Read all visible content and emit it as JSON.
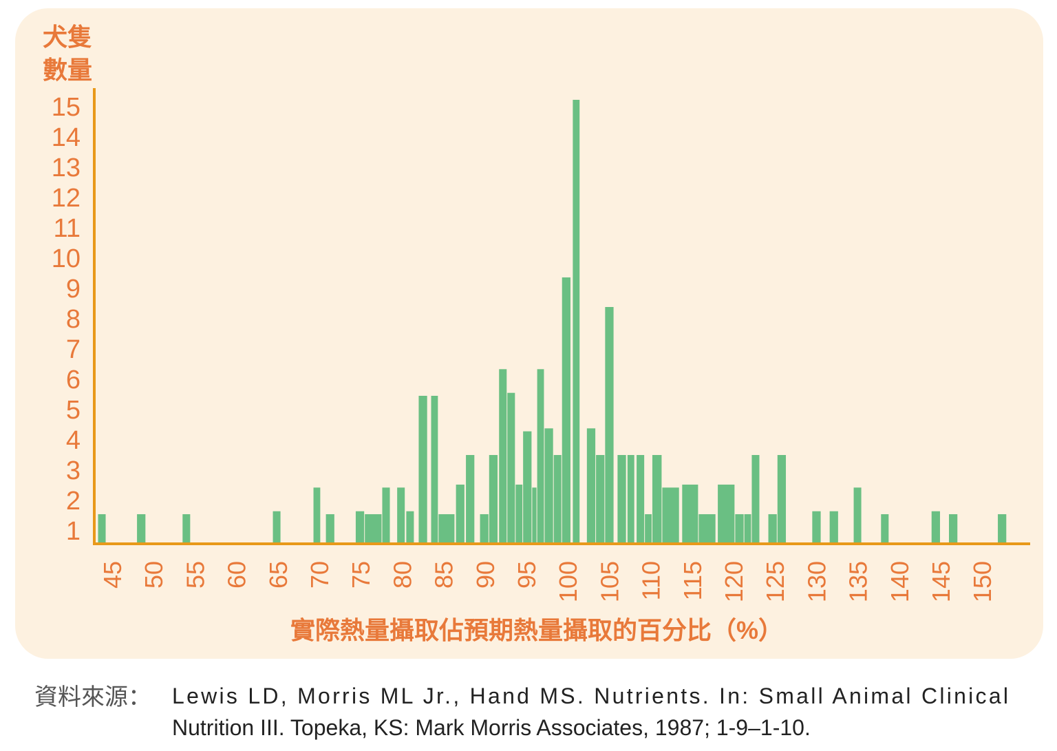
{
  "chart_data": {
    "type": "bar",
    "title": "",
    "ylabel_lines": [
      "犬隻",
      "數量"
    ],
    "xlabel": "實際熱量攝取佔預期熱量攝取的百分比（%）",
    "x_ticks": [
      "45",
      "50",
      "55",
      "60",
      "65",
      "70",
      "75",
      "80",
      "85",
      "90",
      "95",
      "100",
      "105",
      "110",
      "115",
      "120",
      "125",
      "130",
      "135",
      "140",
      "145",
      "150"
    ],
    "y_ticks": [
      "1",
      "2",
      "3",
      "4",
      "5",
      "6",
      "7",
      "8",
      "9",
      "10",
      "11",
      "12",
      "13",
      "14",
      "15"
    ],
    "xlim": [
      44,
      155
    ],
    "ylim": [
      0,
      15
    ],
    "grid": false,
    "bars": [
      {
        "x0": 44.0,
        "x1": 45.0,
        "count": 1
      },
      {
        "x0": 48.7,
        "x1": 49.8,
        "count": 1
      },
      {
        "x0": 54.2,
        "x1": 55.2,
        "count": 1
      },
      {
        "x0": 65.1,
        "x1": 66.1,
        "count": 1.1
      },
      {
        "x0": 70.0,
        "x1": 70.9,
        "count": 1.9
      },
      {
        "x0": 71.5,
        "x1": 72.6,
        "count": 1
      },
      {
        "x0": 75.1,
        "x1": 76.2,
        "count": 1.1
      },
      {
        "x0": 76.2,
        "x1": 78.3,
        "count": 1
      },
      {
        "x0": 78.3,
        "x1": 79.3,
        "count": 1.9
      },
      {
        "x0": 80.1,
        "x1": 81.1,
        "count": 1.9
      },
      {
        "x0": 81.2,
        "x1": 82.2,
        "count": 1.1
      },
      {
        "x0": 82.7,
        "x1": 83.8,
        "count": 5
      },
      {
        "x0": 84.2,
        "x1": 85.1,
        "count": 5
      },
      {
        "x0": 85.1,
        "x1": 87.1,
        "count": 1
      },
      {
        "x0": 87.2,
        "x1": 88.3,
        "count": 2
      },
      {
        "x0": 88.4,
        "x1": 89.5,
        "count": 3
      },
      {
        "x0": 90.1,
        "x1": 91.2,
        "count": 1
      },
      {
        "x0": 91.2,
        "x1": 92.3,
        "count": 3
      },
      {
        "x0": 92.4,
        "x1": 93.4,
        "count": 5.9
      },
      {
        "x0": 93.4,
        "x1": 94.4,
        "count": 5.1
      },
      {
        "x0": 94.4,
        "x1": 95.3,
        "count": 2
      },
      {
        "x0": 95.3,
        "x1": 96.4,
        "count": 3.8
      },
      {
        "x0": 96.4,
        "x1": 97.0,
        "count": 1.9
      },
      {
        "x0": 97.0,
        "x1": 97.9,
        "count": 5.9
      },
      {
        "x0": 97.9,
        "x1": 99.0,
        "count": 3.9
      },
      {
        "x0": 99.0,
        "x1": 100.0,
        "count": 3
      },
      {
        "x0": 100.0,
        "x1": 101.1,
        "count": 9
      },
      {
        "x0": 101.3,
        "x1": 102.2,
        "count": 15
      },
      {
        "x0": 103.0,
        "x1": 104.1,
        "count": 3.9
      },
      {
        "x0": 104.1,
        "x1": 105.2,
        "count": 3
      },
      {
        "x0": 105.2,
        "x1": 106.3,
        "count": 8
      },
      {
        "x0": 106.7,
        "x1": 107.8,
        "count": 3
      },
      {
        "x0": 107.9,
        "x1": 108.8,
        "count": 3
      },
      {
        "x0": 109.0,
        "x1": 110.0,
        "count": 3
      },
      {
        "x0": 110.0,
        "x1": 110.9,
        "count": 1
      },
      {
        "x0": 110.9,
        "x1": 112.1,
        "count": 3
      },
      {
        "x0": 112.1,
        "x1": 114.2,
        "count": 1.9
      },
      {
        "x0": 114.5,
        "x1": 116.5,
        "count": 2
      },
      {
        "x0": 116.5,
        "x1": 118.6,
        "count": 1
      },
      {
        "x0": 118.8,
        "x1": 120.9,
        "count": 2
      },
      {
        "x0": 120.9,
        "x1": 122.0,
        "count": 1
      },
      {
        "x0": 122.0,
        "x1": 122.9,
        "count": 1
      },
      {
        "x0": 122.9,
        "x1": 123.9,
        "count": 3
      },
      {
        "x0": 124.9,
        "x1": 126.0,
        "count": 1
      },
      {
        "x0": 126.0,
        "x1": 127.1,
        "count": 3
      },
      {
        "x0": 130.2,
        "x1": 131.3,
        "count": 1.1
      },
      {
        "x0": 132.3,
        "x1": 133.4,
        "count": 1.1
      },
      {
        "x0": 135.2,
        "x1": 136.2,
        "count": 1.9
      },
      {
        "x0": 138.5,
        "x1": 139.5,
        "count": 1
      },
      {
        "x0": 144.6,
        "x1": 145.7,
        "count": 1.1
      },
      {
        "x0": 146.7,
        "x1": 147.8,
        "count": 1
      },
      {
        "x0": 152.6,
        "x1": 153.7,
        "count": 1
      }
    ],
    "colors": {
      "bar": "#6abf83",
      "axis": "#e8991a",
      "text": "#e8793a",
      "panel": "#fdf1e0"
    }
  },
  "source": {
    "label": "資料來源：",
    "line1": "Lewis LD, Morris ML Jr., Hand MS. Nutrients. In: Small Animal Clinical",
    "line2": "Nutrition III. Topeka, KS: Mark Morris Associates, 1987; 1-9–1-10."
  }
}
